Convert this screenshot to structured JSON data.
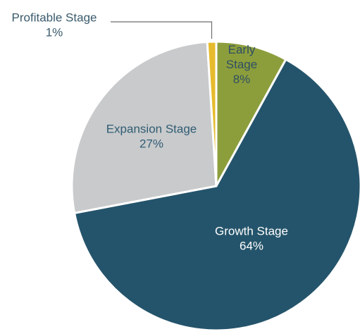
{
  "chart_data": {
    "type": "pie",
    "title": "",
    "start_angle_deg": 0,
    "direction": "clockwise",
    "slices": [
      {
        "name": "Early Stage",
        "label_lines": [
          "Early",
          "Stage"
        ],
        "value": 8,
        "value_label": "8%",
        "color": "#8c9e3c",
        "label_color": "#2f4f63"
      },
      {
        "name": "Growth Stage",
        "label_lines": [
          "Growth Stage"
        ],
        "value": 64,
        "value_label": "64%",
        "color": "#24546b",
        "label_color": "#ffffff"
      },
      {
        "name": "Expansion Stage",
        "label_lines": [
          "Expansion Stage"
        ],
        "value": 27,
        "value_label": "27%",
        "color": "#c9cacc",
        "label_color": "#2f5d73"
      },
      {
        "name": "Profitable Stage",
        "label_lines": [
          "Profitable Stage"
        ],
        "value": 1,
        "value_label": "1%",
        "color": "#e6bb2d",
        "label_color": "#3a5a6c",
        "label_outside": true
      }
    ],
    "legend": "none",
    "grid": false
  }
}
